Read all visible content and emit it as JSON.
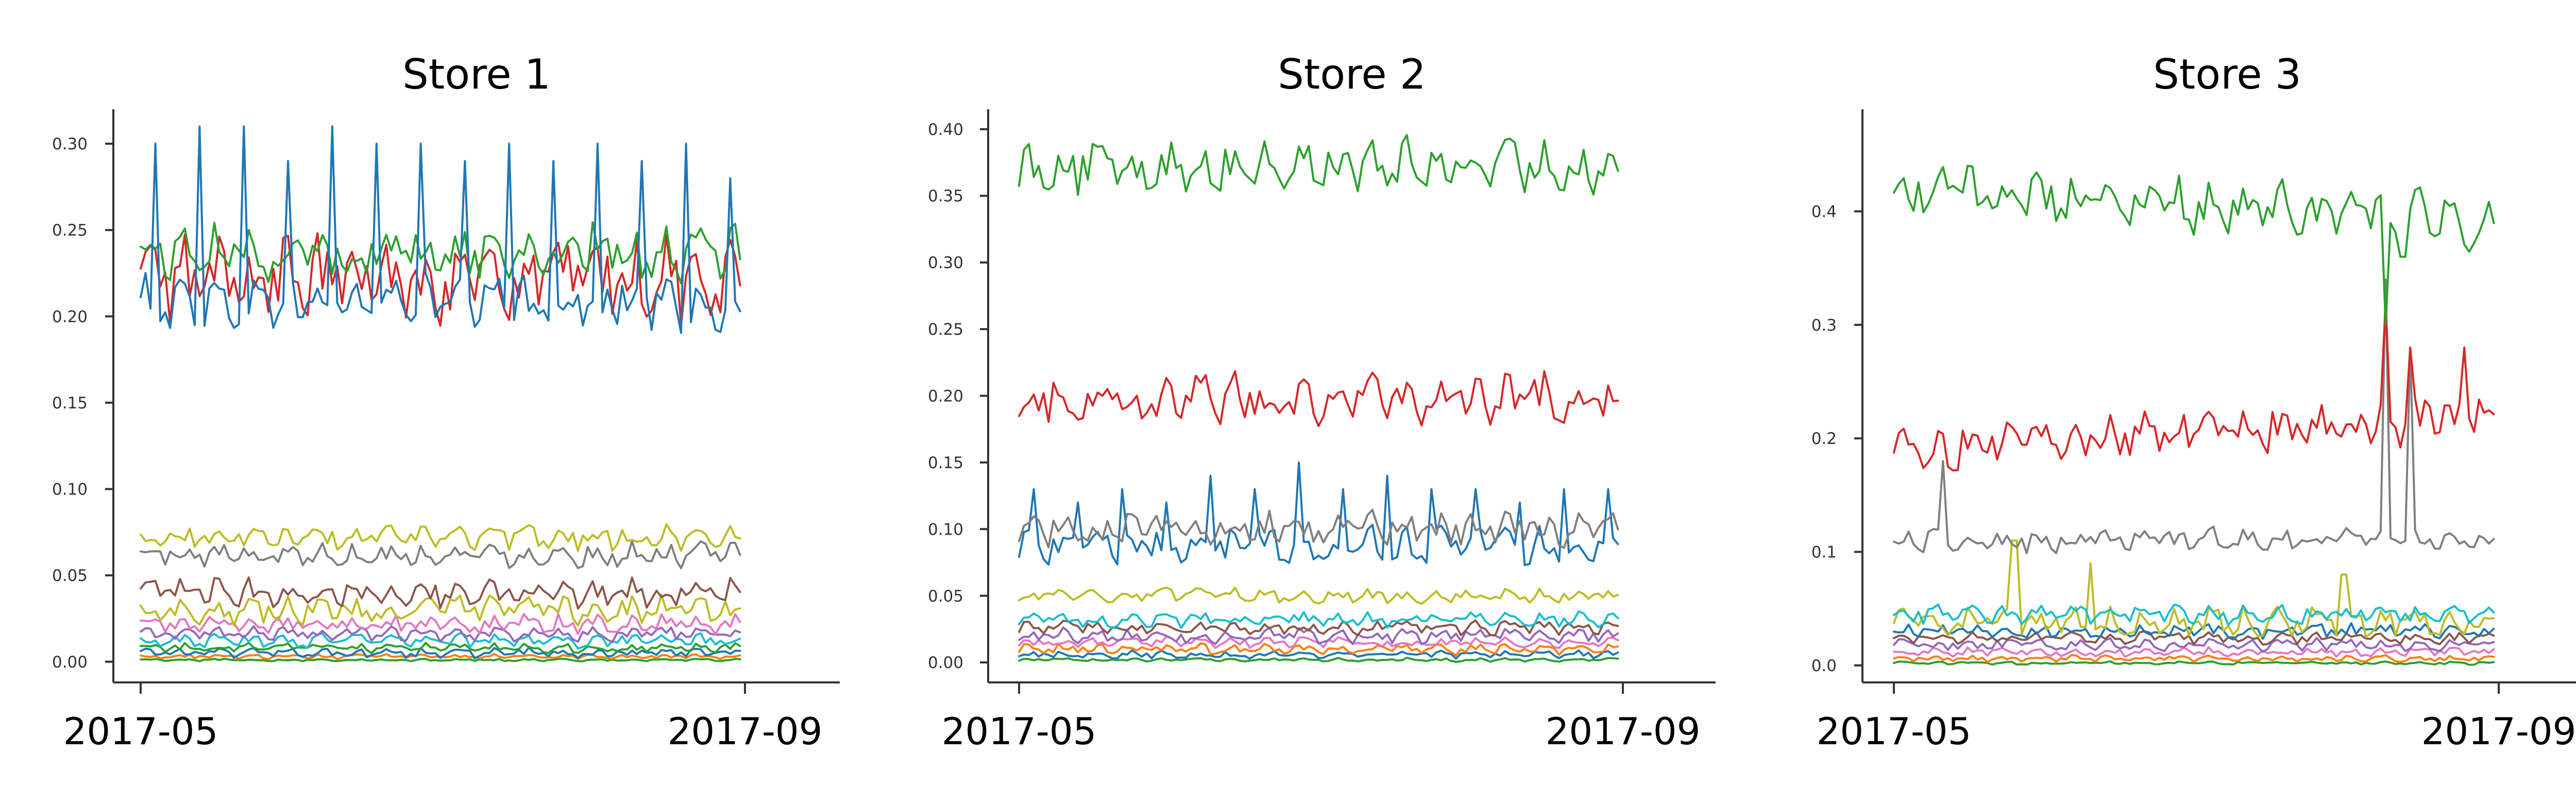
{
  "chart_data": [
    {
      "type": "line",
      "title": "Store 1",
      "xlabel": "",
      "ylabel": "",
      "x_range": [
        "2017-05-01",
        "2017-09-01"
      ],
      "x_ticks": [
        "2017-05",
        "2017-09"
      ],
      "ylim": [
        -0.012,
        0.32
      ],
      "y_ticks": [
        "0.00",
        "0.05",
        "0.10",
        "0.15",
        "0.20",
        "0.25",
        "0.30"
      ],
      "grid": false,
      "series": [
        {
          "color": "#1f77b4",
          "level": 0.208,
          "amp": 0.012,
          "spikes": [
            0.3,
            0.31,
            0.31,
            0.29,
            0.31,
            0.3,
            0.3,
            0.29,
            0.3,
            0.29,
            0.3,
            0.29,
            0.3,
            0.28
          ]
        },
        {
          "color": "#2ca02c",
          "level": 0.237,
          "amp": 0.012
        },
        {
          "color": "#d62728",
          "level": 0.222,
          "amp": 0.018
        },
        {
          "color": "#bcbd22",
          "level": 0.072,
          "amp": 0.005
        },
        {
          "color": "#7f7f7f",
          "level": 0.062,
          "amp": 0.005
        },
        {
          "color": "#8c564b",
          "level": 0.04,
          "amp": 0.006
        },
        {
          "color": "#bcbd22",
          "level": 0.03,
          "amp": 0.006
        },
        {
          "color": "#e377c2",
          "level": 0.022,
          "amp": 0.004
        },
        {
          "color": "#9467bd",
          "level": 0.016,
          "amp": 0.003
        },
        {
          "color": "#17becf",
          "level": 0.012,
          "amp": 0.003
        },
        {
          "color": "#2ca02c",
          "level": 0.008,
          "amp": 0.002
        },
        {
          "color": "#1f77b4",
          "level": 0.005,
          "amp": 0.002
        },
        {
          "color": "#ff7f0e",
          "level": 0.003,
          "amp": 0.001
        },
        {
          "color": "#2ca02c",
          "level": 0.001,
          "amp": 0.0005
        }
      ]
    },
    {
      "type": "line",
      "title": "Store 2",
      "xlabel": "",
      "ylabel": "",
      "x_range": [
        "2017-05-01",
        "2017-09-01"
      ],
      "x_ticks": [
        "2017-05",
        "2017-09"
      ],
      "ylim": [
        -0.015,
        0.415
      ],
      "y_ticks": [
        "0.00",
        "0.05",
        "0.10",
        "0.15",
        "0.20",
        "0.25",
        "0.30",
        "0.35",
        "0.40"
      ],
      "grid": false,
      "series": [
        {
          "color": "#2ca02c",
          "level": 0.372,
          "amp": 0.015
        },
        {
          "color": "#d62728",
          "level": 0.198,
          "amp": 0.014
        },
        {
          "color": "#7f7f7f",
          "level": 0.1,
          "amp": 0.01
        },
        {
          "color": "#1f77b4",
          "level": 0.088,
          "amp": 0.01,
          "spikes": [
            0.13,
            0.12,
            0.13,
            0.12,
            0.14,
            0.13,
            0.15,
            0.13,
            0.14,
            0.13,
            0.13,
            0.12,
            0.13,
            0.13
          ]
        },
        {
          "color": "#bcbd22",
          "level": 0.05,
          "amp": 0.004
        },
        {
          "color": "#17becf",
          "level": 0.032,
          "amp": 0.004
        },
        {
          "color": "#8c564b",
          "level": 0.026,
          "amp": 0.004
        },
        {
          "color": "#9467bd",
          "level": 0.02,
          "amp": 0.004
        },
        {
          "color": "#e377c2",
          "level": 0.015,
          "amp": 0.003
        },
        {
          "color": "#ff7f0e",
          "level": 0.01,
          "amp": 0.003
        },
        {
          "color": "#1f77b4",
          "level": 0.006,
          "amp": 0.002
        },
        {
          "color": "#2ca02c",
          "level": 0.002,
          "amp": 0.001
        }
      ]
    },
    {
      "type": "line",
      "title": "Store 3",
      "xlabel": "",
      "ylabel": "",
      "x_range": [
        "2017-05-01",
        "2017-09-01"
      ],
      "x_ticks": [
        "2017-05",
        "2017-09"
      ],
      "ylim": [
        -0.015,
        0.49
      ],
      "y_ticks": [
        "0.0",
        "0.1",
        "0.2",
        "0.3",
        "0.4"
      ],
      "grid": false,
      "series": [
        {
          "color": "#2ca02c",
          "level": 0.42,
          "amp": 0.018,
          "trend": -0.03,
          "dips": [
            [
              0.82,
              0.3
            ],
            [
              0.85,
              0.36
            ]
          ]
        },
        {
          "color": "#d62728",
          "level": 0.19,
          "amp": 0.015,
          "trend": 0.03,
          "dips": [
            [
              0.82,
              0.32
            ],
            [
              0.86,
              0.28
            ],
            [
              0.95,
              0.28
            ]
          ]
        },
        {
          "color": "#7f7f7f",
          "level": 0.11,
          "amp": 0.008,
          "dips": [
            [
              0.08,
              0.18
            ],
            [
              0.82,
              0.34
            ],
            [
              0.86,
              0.28
            ]
          ]
        },
        {
          "color": "#17becf",
          "level": 0.045,
          "amp": 0.006
        },
        {
          "color": "#bcbd22",
          "level": 0.038,
          "amp": 0.01,
          "dips": [
            [
              0.2,
              0.11
            ],
            [
              0.33,
              0.09
            ],
            [
              0.75,
              0.08
            ]
          ]
        },
        {
          "color": "#1f77b4",
          "level": 0.03,
          "amp": 0.005
        },
        {
          "color": "#8c564b",
          "level": 0.024,
          "amp": 0.004
        },
        {
          "color": "#9467bd",
          "level": 0.018,
          "amp": 0.004
        },
        {
          "color": "#e377c2",
          "level": 0.012,
          "amp": 0.003
        },
        {
          "color": "#ff7f0e",
          "level": 0.006,
          "amp": 0.002
        },
        {
          "color": "#2ca02c",
          "level": 0.002,
          "amp": 0.001
        }
      ]
    }
  ]
}
